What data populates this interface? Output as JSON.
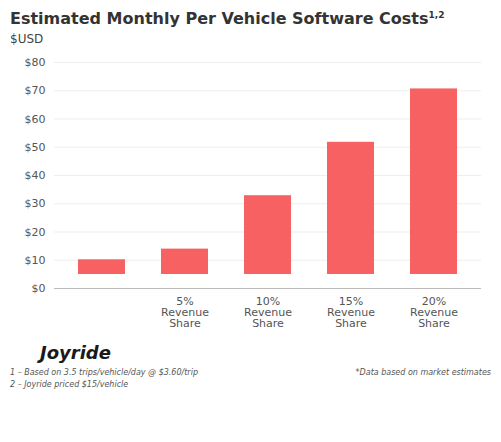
{
  "chart_data": {
    "type": "bar",
    "title": "Estimated Monthly Per Vehicle Software Costs",
    "subtitle": "$USD",
    "annotations": [
      "1,2",
      "Joyride",
      "1 – Based on 3.5 trips/vehicle/day @ $3.60/trip",
      "2 – Joyride priced $15/vehicle",
      "*Data based on market estimates"
    ],
    "categories": [
      null,
      "5%\nRevenue\nShare",
      "10%\nRevenue\nShare",
      "15%\nRevenue\nShare",
      "20%\nRevenue\nShare"
    ],
    "values": [
      15.12,
      18.9,
      37.8,
      56.7,
      75.6
    ],
    "color": "#F76161",
    "ylim": [
      0,
      80
    ],
    "yticks": [
      {
        "value": 0,
        "label": "$0"
      },
      {
        "value": 10,
        "label": "$10"
      },
      {
        "value": 20,
        "label": "$20"
      },
      {
        "value": 30,
        "label": "$30"
      },
      {
        "value": 40,
        "label": "$40"
      },
      {
        "value": 50,
        "label": "$50"
      },
      {
        "value": 60,
        "label": "$60"
      },
      {
        "value": 70,
        "label": "$70"
      },
      {
        "value": 80,
        "label": "$80"
      }
    ],
    "grid": true
  }
}
